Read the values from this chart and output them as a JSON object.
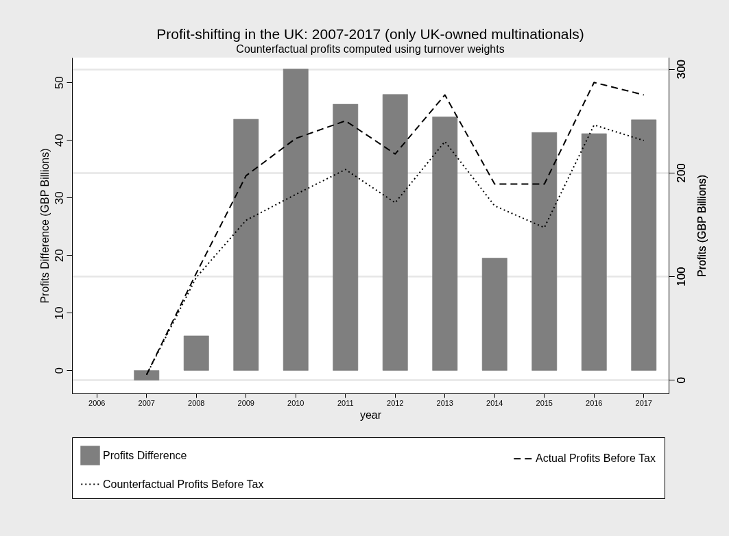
{
  "chart_data": {
    "type": "bar",
    "title": "Profit-shifting in the UK: 2007-2017 (only UK-owned multinationals)",
    "subtitle": "Counterfactual profits computed using turnover weights",
    "xlabel": "year",
    "ylabel": "Profits Difference (GBP Billions)",
    "y2label": "Profits (GBP Billions)",
    "categories": [
      "2006",
      "2007",
      "2008",
      "2009",
      "2010",
      "2011",
      "2012",
      "2013",
      "2014",
      "2015",
      "2016",
      "2017"
    ],
    "series": [
      {
        "name": "Profits Difference",
        "color": "#7f7f7f",
        "values": [
          null,
          -1.7,
          6,
          43.6,
          52.3,
          46.2,
          47.9,
          44,
          19.5,
          41.3,
          41.1,
          43.5
        ]
      },
      {
        "name": "Actual Profits Before Tax",
        "type": "line",
        "axis": "y2",
        "line_style": "dashed",
        "color": "#000000",
        "values": [
          null,
          5,
          103,
          197,
          233,
          250,
          218,
          275,
          189,
          189,
          287,
          275
        ]
      },
      {
        "name": "Counterfactual Profits Before Tax",
        "type": "line",
        "axis": "y2",
        "line_style": "dotted",
        "color": "#000000",
        "values": [
          null,
          5,
          99,
          154,
          179,
          203,
          171,
          230,
          168,
          147,
          246,
          231
        ]
      }
    ],
    "ylim": [
      -4,
      54.3
    ],
    "yticks": [
      0,
      10,
      20,
      30,
      40,
      50
    ],
    "y2lim": [
      -13,
      311
    ],
    "y2ticks": [
      0,
      100,
      200,
      300
    ],
    "grid": true,
    "legend": "bottom",
    "marker": "none"
  }
}
